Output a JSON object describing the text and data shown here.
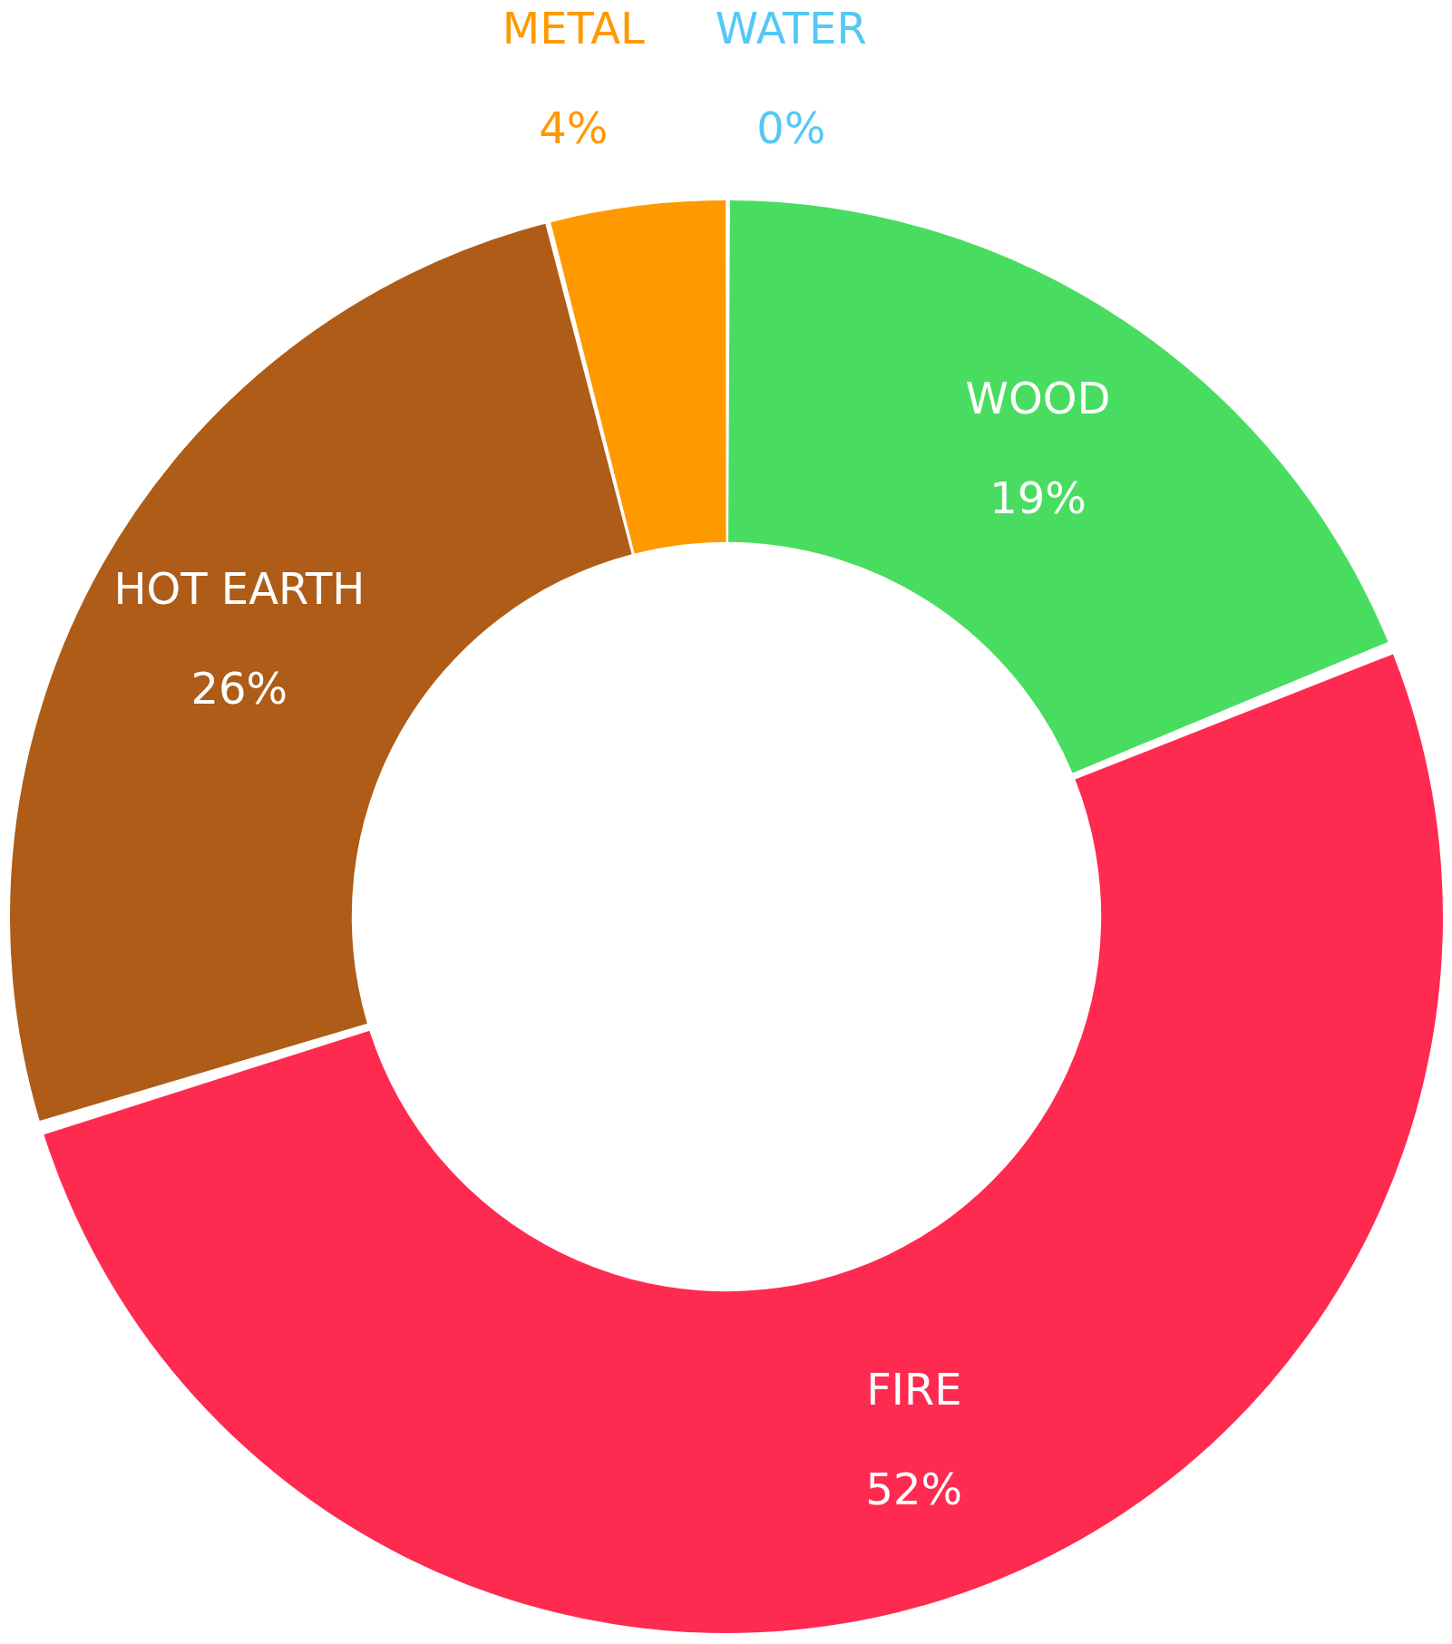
{
  "chart_data": {
    "type": "donut",
    "categories": [
      "WOOD",
      "FIRE",
      "HOT EARTH",
      "METAL",
      "WATER"
    ],
    "values": [
      19,
      52,
      26,
      4,
      0
    ],
    "colors": [
      "#48dd60",
      "#ff2a50",
      "#ae5c17",
      "#ff9900",
      "#55c8f5"
    ],
    "value_labels": [
      "19%",
      "52%",
      "26%",
      "4%",
      "0%"
    ],
    "legend": false
  }
}
